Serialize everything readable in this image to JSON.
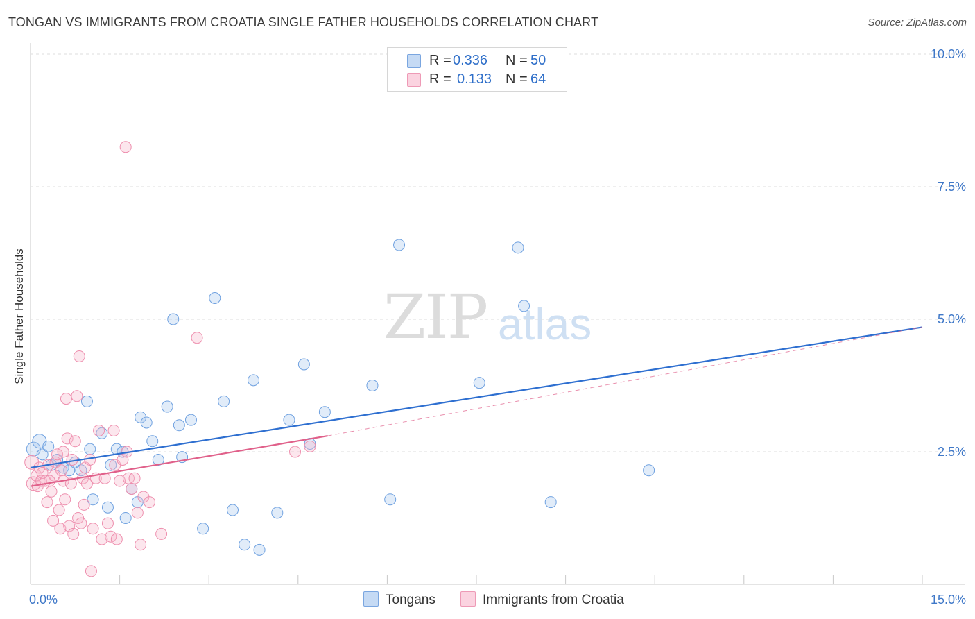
{
  "title": "TONGAN VS IMMIGRANTS FROM CROATIA SINGLE FATHER HOUSEHOLDS CORRELATION CHART",
  "source": "Source: ZipAtlas.com",
  "watermark": {
    "zip": "ZIP",
    "atlas": "atlas"
  },
  "legend": {
    "r_label": "R =",
    "n_label": "N =",
    "rows": [
      {
        "r": "0.336",
        "n": "50",
        "color": "#a9c8ee"
      },
      {
        "r": "0.133",
        "n": "64",
        "color": "#f5b8cb"
      }
    ]
  },
  "bottom_legend": [
    {
      "label": "Tongans",
      "color": "#a9c8ee"
    },
    {
      "label": "Immigrants from Croatia",
      "color": "#f5b8cb"
    }
  ],
  "chart_data": {
    "type": "scatter",
    "title": "TONGAN VS IMMIGRANTS FROM CROATIA SINGLE FATHER HOUSEHOLDS CORRELATION CHART",
    "xlabel": "",
    "ylabel": "Single Father Households",
    "xlim": [
      0,
      15
    ],
    "ylim": [
      0,
      10
    ],
    "x_tick_labels": [
      "0.0%",
      "15.0%"
    ],
    "y_ticks": [
      2.5,
      5.0,
      7.5,
      10.0
    ],
    "y_tick_labels": [
      "2.5%",
      "5.0%",
      "7.5%",
      "10.0%"
    ],
    "grid": true,
    "legend_position": "top-center",
    "colors": {
      "tongans": "#6fa1e0",
      "croatia": "#ee8fae",
      "tongans_line": "#2e6fd0",
      "croatia_line": "#e0608a"
    },
    "series": [
      {
        "name": "Tongans",
        "points": [
          [
            0.05,
            2.55
          ],
          [
            0.15,
            2.7
          ],
          [
            0.2,
            2.45
          ],
          [
            0.3,
            2.6
          ],
          [
            0.35,
            2.25
          ],
          [
            0.45,
            2.35
          ],
          [
            0.55,
            2.2
          ],
          [
            0.65,
            2.15
          ],
          [
            0.75,
            2.3
          ],
          [
            0.85,
            2.15
          ],
          [
            0.95,
            3.45
          ],
          [
            1.0,
            2.55
          ],
          [
            1.05,
            1.6
          ],
          [
            1.2,
            2.85
          ],
          [
            1.3,
            1.45
          ],
          [
            1.35,
            2.25
          ],
          [
            1.45,
            2.55
          ],
          [
            1.55,
            2.5
          ],
          [
            1.6,
            1.25
          ],
          [
            1.7,
            1.8
          ],
          [
            1.8,
            1.55
          ],
          [
            1.85,
            3.15
          ],
          [
            1.95,
            3.05
          ],
          [
            2.05,
            2.7
          ],
          [
            2.15,
            2.35
          ],
          [
            2.3,
            3.35
          ],
          [
            2.4,
            5.0
          ],
          [
            2.5,
            3.0
          ],
          [
            2.55,
            2.4
          ],
          [
            2.7,
            3.1
          ],
          [
            2.9,
            1.05
          ],
          [
            3.1,
            5.4
          ],
          [
            3.25,
            3.45
          ],
          [
            3.4,
            1.4
          ],
          [
            3.6,
            0.75
          ],
          [
            3.75,
            3.85
          ],
          [
            3.85,
            0.65
          ],
          [
            4.15,
            1.35
          ],
          [
            4.35,
            3.1
          ],
          [
            4.6,
            4.15
          ],
          [
            4.7,
            2.65
          ],
          [
            4.95,
            3.25
          ],
          [
            5.75,
            3.75
          ],
          [
            6.05,
            1.6
          ],
          [
            6.2,
            6.4
          ],
          [
            7.55,
            3.8
          ],
          [
            8.2,
            6.35
          ],
          [
            8.3,
            5.25
          ],
          [
            8.75,
            1.55
          ],
          [
            10.4,
            2.15
          ]
        ]
      },
      {
        "name": "Immigrants from Croatia",
        "points": [
          [
            0.02,
            2.3
          ],
          [
            0.05,
            1.9
          ],
          [
            0.1,
            2.05
          ],
          [
            0.12,
            1.85
          ],
          [
            0.15,
            2.2
          ],
          [
            0.18,
            1.95
          ],
          [
            0.2,
            2.1
          ],
          [
            0.25,
            1.95
          ],
          [
            0.28,
            1.55
          ],
          [
            0.3,
            2.25
          ],
          [
            0.35,
            1.75
          ],
          [
            0.38,
            1.2
          ],
          [
            0.4,
            2.05
          ],
          [
            0.42,
            2.3
          ],
          [
            0.45,
            2.45
          ],
          [
            0.48,
            1.4
          ],
          [
            0.5,
            1.05
          ],
          [
            0.52,
            2.15
          ],
          [
            0.55,
            1.95
          ],
          [
            0.58,
            1.6
          ],
          [
            0.6,
            3.5
          ],
          [
            0.62,
            2.75
          ],
          [
            0.65,
            1.1
          ],
          [
            0.68,
            1.9
          ],
          [
            0.7,
            2.35
          ],
          [
            0.72,
            0.95
          ],
          [
            0.75,
            2.7
          ],
          [
            0.78,
            3.55
          ],
          [
            0.8,
            1.25
          ],
          [
            0.82,
            4.3
          ],
          [
            0.85,
            1.15
          ],
          [
            0.88,
            2.0
          ],
          [
            0.9,
            1.5
          ],
          [
            0.92,
            2.2
          ],
          [
            0.95,
            1.9
          ],
          [
            1.0,
            2.35
          ],
          [
            1.02,
            0.25
          ],
          [
            1.05,
            1.05
          ],
          [
            1.1,
            2.0
          ],
          [
            1.15,
            2.9
          ],
          [
            1.2,
            0.85
          ],
          [
            1.25,
            2.0
          ],
          [
            1.3,
            1.15
          ],
          [
            1.35,
            0.9
          ],
          [
            1.4,
            2.9
          ],
          [
            1.42,
            2.25
          ],
          [
            1.45,
            0.85
          ],
          [
            1.5,
            1.95
          ],
          [
            1.55,
            2.35
          ],
          [
            1.6,
            8.25
          ],
          [
            1.62,
            2.5
          ],
          [
            1.65,
            2.0
          ],
          [
            1.7,
            1.8
          ],
          [
            1.75,
            2.0
          ],
          [
            1.8,
            1.35
          ],
          [
            1.85,
            0.75
          ],
          [
            1.9,
            1.65
          ],
          [
            2.0,
            1.55
          ],
          [
            2.2,
            0.95
          ],
          [
            2.8,
            4.65
          ],
          [
            4.45,
            2.5
          ],
          [
            4.7,
            2.6
          ],
          [
            0.32,
            1.95
          ],
          [
            0.55,
            2.5
          ]
        ]
      }
    ],
    "trendlines": [
      {
        "series": "Tongans",
        "x": [
          0,
          15
        ],
        "y": [
          2.2,
          4.85
        ],
        "style": "solid"
      },
      {
        "series": "Immigrants from Croatia",
        "x": [
          0,
          5.0
        ],
        "y": [
          1.85,
          2.8
        ],
        "style": "solid"
      },
      {
        "series": "Immigrants from Croatia",
        "x": [
          5.0,
          15
        ],
        "y": [
          2.8,
          4.85
        ],
        "style": "dashed"
      }
    ]
  }
}
